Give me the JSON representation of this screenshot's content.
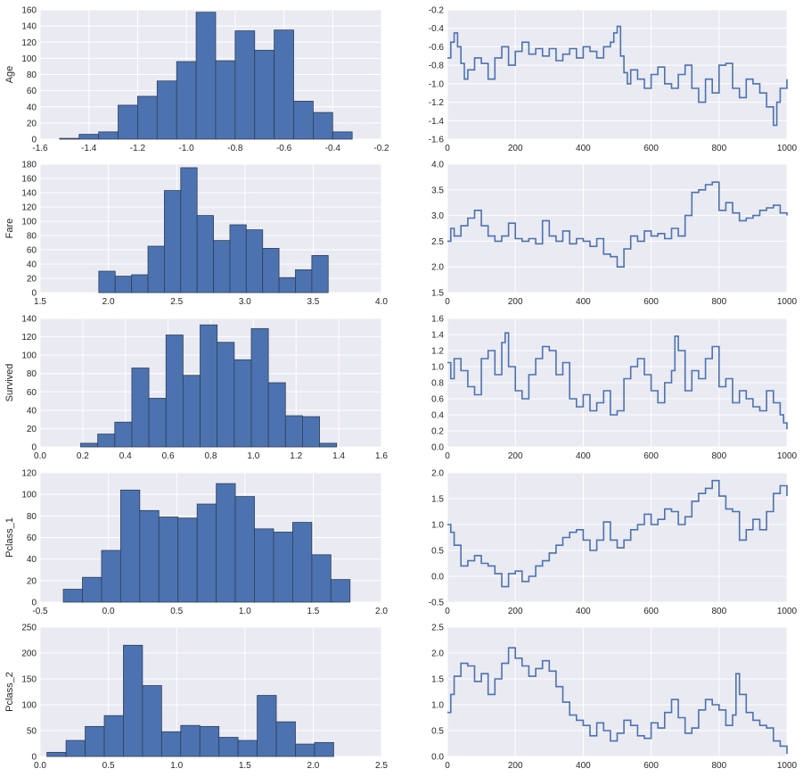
{
  "chart_data": [
    {
      "type": "bar",
      "subtype": "histogram",
      "panel": "age-histogram",
      "ylabel": "Age",
      "xlabel": "",
      "title": "",
      "xlim": [
        -1.6,
        -0.2
      ],
      "ylim": [
        0,
        160
      ],
      "xticks": [
        "-1.6",
        "-1.4",
        "-1.2",
        "-1.0",
        "-0.8",
        "-0.6",
        "-0.4",
        "-0.2"
      ],
      "yticks": [
        "0",
        "20",
        "40",
        "60",
        "80",
        "100",
        "120",
        "140",
        "160"
      ],
      "bin_edges": [
        -1.52,
        -1.44,
        -1.36,
        -1.28,
        -1.2,
        -1.12,
        -1.04,
        -0.96,
        -0.88,
        -0.8,
        -0.72,
        -0.64,
        -0.56,
        -0.48,
        -0.4,
        -0.32
      ],
      "values": [
        1,
        6,
        9,
        42,
        53,
        72,
        96,
        157,
        97,
        134,
        110,
        135,
        47,
        33,
        9
      ],
      "grid": true
    },
    {
      "type": "line",
      "panel": "age-trace",
      "ylabel": "",
      "xlabel": "",
      "title": "",
      "xlim": [
        0,
        1000
      ],
      "ylim": [
        -1.6,
        -0.2
      ],
      "xticks": [
        "0",
        "200",
        "400",
        "600",
        "800",
        "1000"
      ],
      "yticks": [
        "-1.6",
        "-1.4",
        "-1.2",
        "-1.0",
        "-0.8",
        "-0.6",
        "-0.4",
        "-0.2"
      ],
      "x": [
        0,
        10,
        20,
        30,
        40,
        50,
        60,
        80,
        100,
        120,
        140,
        160,
        180,
        200,
        220,
        240,
        260,
        280,
        300,
        320,
        340,
        360,
        380,
        400,
        420,
        440,
        460,
        480,
        490,
        500,
        510,
        520,
        530,
        540,
        560,
        580,
        600,
        620,
        640,
        660,
        680,
        700,
        720,
        740,
        760,
        780,
        800,
        820,
        840,
        860,
        880,
        900,
        920,
        940,
        960,
        970,
        980,
        1000
      ],
      "values": [
        -0.72,
        -0.55,
        -0.45,
        -0.6,
        -0.78,
        -0.95,
        -0.85,
        -0.72,
        -0.78,
        -0.95,
        -0.72,
        -0.6,
        -0.8,
        -0.65,
        -0.55,
        -0.68,
        -0.62,
        -0.7,
        -0.62,
        -0.75,
        -0.68,
        -0.62,
        -0.72,
        -0.6,
        -0.65,
        -0.72,
        -0.6,
        -0.55,
        -0.45,
        -0.38,
        -0.7,
        -0.88,
        -1.0,
        -0.85,
        -0.95,
        -1.05,
        -0.9,
        -0.82,
        -1.0,
        -1.05,
        -0.9,
        -0.8,
        -1.05,
        -1.2,
        -0.95,
        -1.1,
        -0.8,
        -0.78,
        -1.05,
        -1.15,
        -0.95,
        -1.0,
        -1.1,
        -1.25,
        -1.45,
        -1.2,
        -1.05,
        -0.95
      ],
      "grid": true
    },
    {
      "type": "bar",
      "subtype": "histogram",
      "panel": "fare-histogram",
      "ylabel": "Fare",
      "xlabel": "",
      "title": "",
      "xlim": [
        1.5,
        4.0
      ],
      "ylim": [
        0,
        180
      ],
      "xticks": [
        "1.5",
        "2.0",
        "2.5",
        "3.0",
        "3.5",
        "4.0"
      ],
      "yticks": [
        "0",
        "20",
        "40",
        "60",
        "80",
        "100",
        "120",
        "140",
        "160",
        "180"
      ],
      "bin_edges": [
        1.93,
        2.05,
        2.17,
        2.29,
        2.41,
        2.53,
        2.65,
        2.77,
        2.89,
        3.01,
        3.13,
        3.25,
        3.37,
        3.49,
        3.61
      ],
      "values": [
        30,
        23,
        25,
        65,
        143,
        175,
        108,
        73,
        95,
        88,
        62,
        21,
        32,
        52,
        10
      ],
      "grid": true
    },
    {
      "type": "line",
      "panel": "fare-trace",
      "ylabel": "",
      "xlabel": "",
      "title": "",
      "xlim": [
        0,
        1000
      ],
      "ylim": [
        1.5,
        4.0
      ],
      "xticks": [
        "0",
        "200",
        "400",
        "600",
        "800",
        "1000"
      ],
      "yticks": [
        "1.5",
        "2.0",
        "2.5",
        "3.0",
        "3.5",
        "4.0"
      ],
      "x": [
        0,
        10,
        20,
        40,
        60,
        80,
        100,
        120,
        140,
        160,
        180,
        200,
        220,
        240,
        260,
        280,
        300,
        320,
        340,
        360,
        380,
        400,
        420,
        440,
        460,
        480,
        500,
        520,
        540,
        560,
        580,
        600,
        620,
        640,
        660,
        680,
        700,
        720,
        740,
        760,
        780,
        800,
        820,
        840,
        860,
        880,
        900,
        920,
        940,
        960,
        980,
        1000
      ],
      "values": [
        2.5,
        2.75,
        2.6,
        2.8,
        2.95,
        3.1,
        2.8,
        2.6,
        2.5,
        2.6,
        2.85,
        2.55,
        2.5,
        2.55,
        2.45,
        2.9,
        2.6,
        2.5,
        2.7,
        2.45,
        2.55,
        2.5,
        2.4,
        2.55,
        2.25,
        2.2,
        2.0,
        2.35,
        2.6,
        2.5,
        2.7,
        2.6,
        2.65,
        2.55,
        2.75,
        2.6,
        3.0,
        3.45,
        3.5,
        3.6,
        3.65,
        3.1,
        3.25,
        3.05,
        2.9,
        2.95,
        3.0,
        3.1,
        3.15,
        3.2,
        3.05,
        3.0
      ],
      "grid": true
    },
    {
      "type": "bar",
      "subtype": "histogram",
      "panel": "survived-histogram",
      "ylabel": "Survived",
      "xlabel": "",
      "title": "",
      "xlim": [
        0.0,
        1.6
      ],
      "ylim": [
        0,
        140
      ],
      "xticks": [
        "0.0",
        "0.2",
        "0.4",
        "0.6",
        "0.8",
        "1.0",
        "1.2",
        "1.4",
        "1.6"
      ],
      "yticks": [
        "0",
        "20",
        "40",
        "60",
        "80",
        "100",
        "120",
        "140"
      ],
      "bin_edges": [
        0.19,
        0.27,
        0.35,
        0.43,
        0.51,
        0.59,
        0.67,
        0.75,
        0.83,
        0.91,
        0.99,
        1.07,
        1.15,
        1.23,
        1.31,
        1.39
      ],
      "values": [
        4,
        14,
        27,
        86,
        53,
        122,
        78,
        133,
        114,
        95,
        129,
        70,
        34,
        33,
        4
      ],
      "grid": true
    },
    {
      "type": "line",
      "panel": "survived-trace",
      "ylabel": "",
      "xlabel": "",
      "title": "",
      "xlim": [
        0,
        1000
      ],
      "ylim": [
        0.0,
        1.6
      ],
      "xticks": [
        "0",
        "200",
        "400",
        "600",
        "800",
        "1000"
      ],
      "yticks": [
        "0.0",
        "0.2",
        "0.4",
        "0.6",
        "0.8",
        "1.0",
        "1.2",
        "1.4",
        "1.6"
      ],
      "x": [
        0,
        10,
        20,
        40,
        60,
        80,
        100,
        120,
        140,
        160,
        170,
        180,
        200,
        220,
        240,
        260,
        280,
        300,
        320,
        340,
        360,
        380,
        400,
        420,
        440,
        460,
        480,
        500,
        520,
        540,
        560,
        580,
        600,
        620,
        640,
        660,
        670,
        680,
        700,
        720,
        740,
        760,
        780,
        800,
        820,
        840,
        860,
        880,
        900,
        920,
        940,
        960,
        980,
        990,
        1000
      ],
      "values": [
        1.05,
        0.85,
        1.1,
        0.95,
        0.75,
        0.65,
        1.1,
        1.2,
        0.9,
        1.3,
        1.42,
        1.0,
        0.7,
        0.6,
        0.9,
        1.1,
        1.25,
        1.2,
        0.9,
        1.05,
        0.6,
        0.5,
        0.65,
        0.45,
        0.55,
        0.7,
        0.4,
        0.45,
        0.85,
        1.0,
        1.1,
        0.9,
        0.7,
        0.55,
        0.8,
        0.95,
        1.38,
        1.2,
        0.7,
        0.95,
        0.85,
        1.1,
        1.25,
        0.75,
        0.85,
        0.55,
        0.7,
        0.6,
        0.5,
        0.45,
        0.7,
        0.55,
        0.4,
        0.3,
        0.22
      ],
      "grid": true
    },
    {
      "type": "bar",
      "subtype": "histogram",
      "panel": "pclass1-histogram",
      "ylabel": "Pclass_1",
      "xlabel": "",
      "title": "",
      "xlim": [
        -0.5,
        2.0
      ],
      "ylim": [
        0,
        120
      ],
      "xticks": [
        "-0.5",
        "0.0",
        "0.5",
        "1.0",
        "1.5",
        "2.0"
      ],
      "yticks": [
        "0",
        "20",
        "40",
        "60",
        "80",
        "100",
        "120"
      ],
      "bin_edges": [
        -0.33,
        -0.19,
        -0.05,
        0.09,
        0.23,
        0.37,
        0.51,
        0.65,
        0.79,
        0.93,
        1.07,
        1.21,
        1.35,
        1.49,
        1.63,
        1.77,
        1.91
      ],
      "values": [
        12,
        23,
        48,
        104,
        85,
        79,
        78,
        91,
        110,
        98,
        68,
        65,
        74,
        44,
        21,
        0
      ],
      "grid": true
    },
    {
      "type": "line",
      "panel": "pclass1-trace",
      "ylabel": "",
      "xlabel": "",
      "title": "",
      "xlim": [
        0,
        1000
      ],
      "ylim": [
        -0.5,
        2.0
      ],
      "xticks": [
        "0",
        "200",
        "400",
        "600",
        "800",
        "1000"
      ],
      "yticks": [
        "-0.5",
        "0.0",
        "0.5",
        "1.0",
        "1.5",
        "2.0"
      ],
      "x": [
        0,
        10,
        20,
        40,
        60,
        80,
        100,
        120,
        140,
        160,
        180,
        200,
        220,
        240,
        260,
        280,
        300,
        320,
        340,
        360,
        380,
        400,
        420,
        440,
        460,
        480,
        500,
        520,
        540,
        560,
        580,
        600,
        620,
        640,
        660,
        680,
        700,
        720,
        740,
        760,
        780,
        800,
        820,
        840,
        860,
        880,
        900,
        920,
        940,
        960,
        980,
        1000
      ],
      "values": [
        1.0,
        0.85,
        0.6,
        0.2,
        0.3,
        0.4,
        0.25,
        0.2,
        0.05,
        -0.2,
        0.05,
        0.1,
        -0.1,
        0.0,
        0.2,
        0.3,
        0.45,
        0.6,
        0.75,
        0.85,
        0.9,
        0.7,
        0.5,
        0.7,
        1.05,
        0.7,
        0.55,
        0.7,
        0.9,
        1.0,
        1.2,
        1.0,
        1.1,
        1.3,
        1.25,
        1.0,
        1.15,
        1.45,
        1.6,
        1.7,
        1.85,
        1.55,
        1.3,
        1.25,
        0.7,
        0.9,
        1.1,
        0.9,
        1.25,
        1.6,
        1.75,
        1.55
      ],
      "grid": true
    },
    {
      "type": "bar",
      "subtype": "histogram",
      "panel": "pclass2-histogram",
      "ylabel": "Pclass_2",
      "xlabel": "",
      "title": "",
      "xlim": [
        0.0,
        2.5
      ],
      "ylim": [
        0,
        250
      ],
      "xticks": [
        "0.0",
        "0.5",
        "1.0",
        "1.5",
        "2.0",
        "2.5"
      ],
      "yticks": [
        "0",
        "50",
        "100",
        "150",
        "200",
        "250"
      ],
      "bin_edges": [
        0.05,
        0.19,
        0.33,
        0.47,
        0.61,
        0.75,
        0.89,
        1.03,
        1.17,
        1.31,
        1.45,
        1.59,
        1.73,
        1.87,
        2.01,
        2.15
      ],
      "values": [
        8,
        31,
        58,
        79,
        215,
        137,
        48,
        60,
        58,
        37,
        31,
        118,
        67,
        24,
        27
      ],
      "grid": true
    },
    {
      "type": "line",
      "panel": "pclass2-trace",
      "ylabel": "",
      "xlabel": "",
      "title": "",
      "xlim": [
        0,
        1000
      ],
      "ylim": [
        0.0,
        2.5
      ],
      "xticks": [
        "0",
        "200",
        "400",
        "600",
        "800",
        "1000"
      ],
      "yticks": [
        "0.0",
        "0.5",
        "1.0",
        "1.5",
        "2.0",
        "2.5"
      ],
      "x": [
        0,
        10,
        20,
        40,
        60,
        80,
        100,
        120,
        140,
        160,
        180,
        200,
        220,
        240,
        260,
        280,
        300,
        320,
        340,
        360,
        380,
        400,
        420,
        440,
        460,
        480,
        500,
        520,
        540,
        560,
        580,
        600,
        620,
        640,
        660,
        680,
        700,
        720,
        740,
        760,
        780,
        800,
        820,
        840,
        850,
        860,
        880,
        900,
        920,
        940,
        960,
        980,
        1000
      ],
      "values": [
        0.85,
        1.2,
        1.55,
        1.8,
        1.75,
        1.45,
        1.6,
        1.2,
        1.5,
        1.8,
        2.1,
        1.9,
        1.75,
        1.55,
        1.7,
        1.85,
        1.65,
        1.35,
        1.05,
        0.8,
        0.7,
        0.6,
        0.4,
        0.65,
        0.5,
        0.3,
        0.45,
        0.7,
        0.6,
        0.4,
        0.35,
        0.65,
        0.55,
        0.85,
        1.1,
        0.75,
        0.45,
        0.55,
        0.9,
        1.1,
        1.0,
        0.9,
        0.6,
        0.8,
        1.6,
        1.2,
        0.85,
        0.7,
        0.6,
        0.55,
        0.3,
        0.2,
        0.05
      ],
      "grid": true
    }
  ],
  "colors": {
    "background": "#eaeaf2",
    "grid": "#ffffff",
    "bar_fill": "#4c72b0",
    "bar_edge": "#2e3f5c",
    "line": "#4c72b0",
    "text": "#262626"
  }
}
